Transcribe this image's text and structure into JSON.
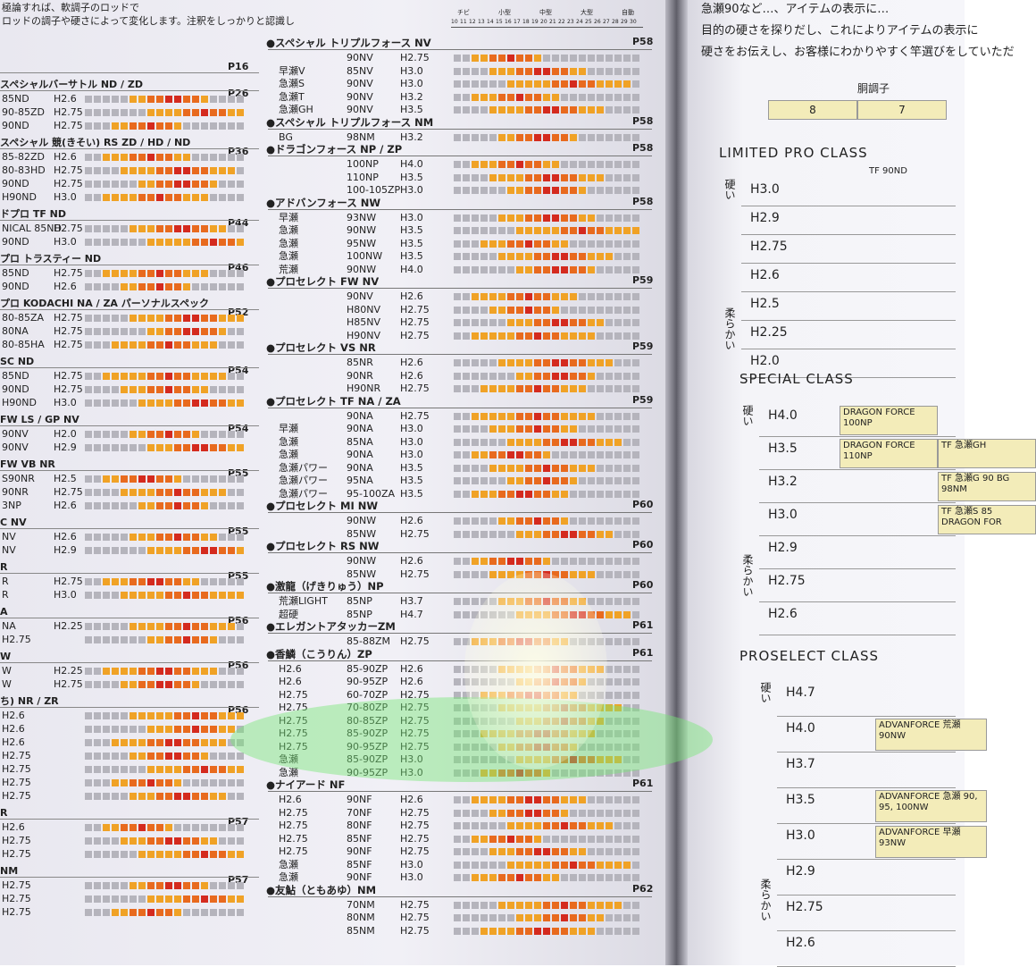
{
  "left_page": {
    "intro": [
      "極論すれば、軟調子のロッドで",
      "ロッドの調子や硬さによって変化します。注釈をしっかりと認識し"
    ],
    "scale": {
      "sizes": [
        "チビ",
        "小型",
        "中型",
        "大型",
        "自動"
      ],
      "numbers": [
        "10",
        "11",
        "12",
        "13",
        "14",
        "15",
        "16",
        "17",
        "18",
        "19",
        "20",
        "21",
        "22",
        "23",
        "24",
        "25",
        "26",
        "27",
        "28",
        "29",
        "30"
      ]
    },
    "left_column": [
      {
        "page": "P16"
      },
      {
        "title": "スペシャルバーサトル ND / ZD",
        "page": "P26",
        "rows": [
          [
            "85ND",
            "H2.6"
          ],
          [
            "90-85ZD",
            "H2.75"
          ],
          [
            "90ND",
            "H2.75"
          ]
        ]
      },
      {
        "title": "スペシャル 競(きそい) RS ZD / HD / ND",
        "page": "P36",
        "rows": [
          [
            "85-82ZD",
            "H2.6"
          ],
          [
            "80-83HD",
            "H2.75"
          ],
          [
            "90ND",
            "H2.75"
          ],
          [
            "H90ND",
            "H3.0"
          ]
        ]
      },
      {
        "title": "ドプロ TF ND",
        "page": "P44",
        "rows": [
          [
            "NICAL 85ND",
            "H2.75"
          ],
          [
            "90ND",
            "H3.0"
          ]
        ]
      },
      {
        "title": "プロ トラスティー ND",
        "page": "P46",
        "rows": [
          [
            "85ND",
            "H2.75"
          ],
          [
            "90ND",
            "H2.6"
          ]
        ]
      },
      {
        "title": "プロ KODACHI NA / ZA パーソナルスペック",
        "page": "P52",
        "rows": [
          [
            "80-85ZA",
            "H2.75"
          ],
          [
            "80NA",
            "H2.75"
          ],
          [
            "80-85HA",
            "H2.75"
          ]
        ]
      },
      {
        "title": "SC ND",
        "page": "P54",
        "rows": [
          [
            "85ND",
            "H2.75"
          ],
          [
            "90ND",
            "H2.75"
          ],
          [
            "H90ND",
            "H3.0"
          ]
        ]
      },
      {
        "title": "FW LS / GP NV",
        "page": "P54",
        "rows": [
          [
            "90NV",
            "H2.0"
          ],
          [
            "90NV",
            "H2.9"
          ]
        ]
      },
      {
        "title": "FW VB NR",
        "page": "P55",
        "rows": [
          [
            "S90NR",
            "H2.5"
          ],
          [
            "90NR",
            "H2.75"
          ],
          [
            "3NP",
            "H2.6"
          ]
        ]
      },
      {
        "title": "C NV",
        "page": "P55",
        "rows": [
          [
            "NV",
            "H2.6"
          ],
          [
            "NV",
            "H2.9"
          ]
        ]
      },
      {
        "title": "R",
        "page": "P55",
        "rows": [
          [
            "R",
            "H2.75"
          ],
          [
            "R",
            "H3.0"
          ]
        ]
      },
      {
        "title": "A",
        "page": "P56",
        "rows": [
          [
            "NA",
            "H2.25"
          ],
          [
            "H2.75"
          ]
        ]
      },
      {
        "title": "W",
        "page": "P56",
        "rows": [
          [
            "W",
            "H2.25"
          ],
          [
            "W",
            "H2.75"
          ]
        ]
      },
      {
        "title": "ち) NR / ZR",
        "page": "P56",
        "rows": [
          [
            "H2.6"
          ],
          [
            "H2.6"
          ],
          [
            "H2.6"
          ],
          [
            "H2.75"
          ],
          [
            "H2.75"
          ],
          [
            "H2.75"
          ],
          [
            "H2.75"
          ]
        ]
      },
      {
        "title": "R",
        "page": "P57",
        "rows": [
          [
            "H2.6"
          ],
          [
            "H2.75"
          ],
          [
            "H2.75"
          ]
        ]
      },
      {
        "title": "NM",
        "page": "P57",
        "rows": [
          [
            "H2.75"
          ],
          [
            "H2.75"
          ],
          [
            "H2.75"
          ]
        ]
      }
    ],
    "middle_column": [
      {
        "title": "●スペシャル トリプルフォース NV",
        "page": "P58",
        "rows": [
          [
            "90NV",
            "H2.75"
          ],
          [
            "早瀬V",
            "85NV",
            "H3.0"
          ],
          [
            "急瀬S",
            "90NV",
            "H3.0"
          ],
          [
            "急瀬T",
            "90NV",
            "H3.2"
          ],
          [
            "急瀬GH",
            "90NV",
            "H3.5"
          ]
        ]
      },
      {
        "title": "●スペシャル トリプルフォース NM",
        "page": "P58",
        "rows": [
          [
            "BG",
            "98NM",
            "H3.2"
          ]
        ]
      },
      {
        "title": "●ドラゴンフォース NP / ZP",
        "page": "P58",
        "rows": [
          [
            "100NP",
            "H4.0"
          ],
          [
            "110NP",
            "H3.5"
          ],
          [
            "100-105ZP",
            "H3.0"
          ]
        ]
      },
      {
        "title": "●アドバンフォース NW",
        "page": "P58",
        "rows": [
          [
            "早瀬",
            "93NW",
            "H3.0"
          ],
          [
            "急瀬",
            "90NW",
            "H3.5"
          ],
          [
            "急瀬",
            "95NW",
            "H3.5"
          ],
          [
            "急瀬",
            "100NW",
            "H3.5"
          ],
          [
            "荒瀬",
            "90NW",
            "H4.0"
          ]
        ]
      },
      {
        "title": "●プロセレクト FW NV",
        "page": "P59",
        "rows": [
          [
            "90NV",
            "H2.6"
          ],
          [
            "H80NV",
            "H2.75"
          ],
          [
            "H85NV",
            "H2.75"
          ],
          [
            "H90NV",
            "H2.75"
          ]
        ]
      },
      {
        "title": "●プロセレクト VS NR",
        "page": "P59",
        "rows": [
          [
            "85NR",
            "H2.6"
          ],
          [
            "90NR",
            "H2.6"
          ],
          [
            "H90NR",
            "H2.75"
          ]
        ]
      },
      {
        "title": "●プロセレクト TF NA / ZA",
        "page": "P59",
        "rows": [
          [
            "90NA",
            "H2.75"
          ],
          [
            "早瀬",
            "90NA",
            "H3.0"
          ],
          [
            "急瀬",
            "85NA",
            "H3.0"
          ],
          [
            "急瀬",
            "90NA",
            "H3.0"
          ],
          [
            "急瀬パワー",
            "90NA",
            "H3.5"
          ],
          [
            "急瀬パワー",
            "95NA",
            "H3.5"
          ],
          [
            "急瀬パワー",
            "95-100ZA",
            "H3.5"
          ]
        ]
      },
      {
        "title": "●プロセレクト MI NW",
        "page": "P60",
        "rows": [
          [
            "90NW",
            "H2.6"
          ],
          [
            "85NW",
            "H2.75"
          ]
        ]
      },
      {
        "title": "●プロセレクト RS NW",
        "page": "P60",
        "rows": [
          [
            "90NW",
            "H2.6"
          ],
          [
            "85NW",
            "H2.75"
          ]
        ]
      },
      {
        "title": "●激龍（げきりゅう）NP",
        "page": "P60",
        "rows": [
          [
            "荒瀬LIGHT",
            "85NP",
            "H3.7"
          ],
          [
            "超硬",
            "85NP",
            "H4.7"
          ]
        ]
      },
      {
        "title": "●エレガントアタッカーZM",
        "page": "P61",
        "rows": [
          [
            "85-88ZM",
            "H2.75"
          ]
        ]
      },
      {
        "title": "●香鱗（こうりん）ZP",
        "page": "P61",
        "rows": [
          [
            "H2.6",
            "85-90ZP",
            "H2.6"
          ],
          [
            "H2.6",
            "90-95ZP",
            "H2.6"
          ],
          [
            "H2.75",
            "60-70ZP",
            "H2.75"
          ],
          [
            "H2.75",
            "70-80ZP",
            "H2.75"
          ],
          [
            "H2.75",
            "80-85ZP",
            "H2.75"
          ],
          [
            "H2.75",
            "85-90ZP",
            "H2.75"
          ],
          [
            "H2.75",
            "90-95ZP",
            "H2.75"
          ],
          [
            "急瀬",
            "85-90ZP",
            "H3.0"
          ],
          [
            "急瀬",
            "90-95ZP",
            "H3.0"
          ]
        ]
      },
      {
        "title": "●ナイアード NF",
        "page": "P61",
        "rows": [
          [
            "H2.6",
            "90NF",
            "H2.6"
          ],
          [
            "H2.75",
            "70NF",
            "H2.75"
          ],
          [
            "H2.75",
            "80NF",
            "H2.75"
          ],
          [
            "H2.75",
            "85NF",
            "H2.75"
          ],
          [
            "H2.75",
            "90NF",
            "H2.75"
          ],
          [
            "急瀬",
            "85NF",
            "H3.0"
          ],
          [
            "急瀬",
            "90NF",
            "H3.0"
          ]
        ]
      },
      {
        "title": "●友鮎（ともあゆ）NM",
        "page": "P62",
        "rows": [
          [
            "70NM",
            "H2.75"
          ],
          [
            "80NM",
            "H2.75"
          ],
          [
            "85NM",
            "H2.75"
          ]
        ]
      }
    ]
  },
  "right_page": {
    "intro": [
      "急瀬90など…、アイテムの表示に…",
      "目的の硬さを探りだし、これによりアイテムの表示に",
      "硬さをお伝えし、お客様にわかりやすく竿選びをしていただ"
    ],
    "header_table": {
      "title": "胴調子",
      "cells": [
        "8",
        "7"
      ]
    },
    "classes": [
      {
        "name": "LIMITED PRO CLASS",
        "column": "TF 90ND",
        "hard": "硬い",
        "soft": "柔らかい",
        "rows": [
          {
            "h": "H3.0"
          },
          {
            "h": "H2.9"
          },
          {
            "h": "H2.75"
          },
          {
            "h": "H2.6"
          },
          {
            "h": "H2.5"
          },
          {
            "h": "H2.25"
          },
          {
            "h": "H2.0"
          }
        ]
      },
      {
        "name": "SPECIAL CLASS",
        "hard": "硬い",
        "soft": "柔らかい",
        "rows": [
          {
            "h": "H4.0",
            "items": [
              "DRAGON FORCE 100NP"
            ]
          },
          {
            "h": "H3.5",
            "items": [
              "DRAGON FORCE 110NP",
              "TF 急瀬GH"
            ]
          },
          {
            "h": "H3.2",
            "items": [
              "",
              "TF 急瀬G 90 BG 98NM"
            ]
          },
          {
            "h": "H3.0",
            "items": [
              "",
              "TF 急瀬S 85 DRAGON FOR"
            ]
          },
          {
            "h": "H2.9"
          },
          {
            "h": "H2.75"
          },
          {
            "h": "H2.6"
          }
        ]
      },
      {
        "name": "PROSELECT CLASS",
        "hard": "硬い",
        "soft": "柔らかい",
        "rows": [
          {
            "h": "H4.7"
          },
          {
            "h": "H4.0",
            "items": [
              "ADVANFORCE 荒瀬 90NW"
            ]
          },
          {
            "h": "H3.7"
          },
          {
            "h": "H3.5",
            "items": [
              "ADVANFORCE 急瀬 90, 95, 100NW"
            ]
          },
          {
            "h": "H3.0",
            "items": [
              "ADVANFORCE 早瀬 93NW"
            ]
          },
          {
            "h": "H2.9"
          },
          {
            "h": "H2.75"
          },
          {
            "h": "H2.6"
          }
        ]
      }
    ]
  }
}
